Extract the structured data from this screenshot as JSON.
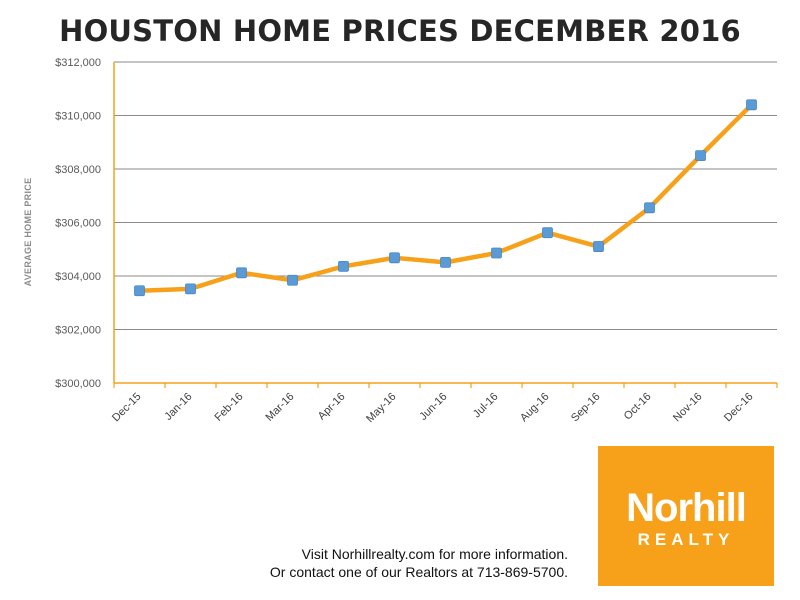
{
  "title": "HOUSTON HOME PRICES DECEMBER 2016",
  "chart_data": {
    "type": "line",
    "categories": [
      "Dec-15",
      "Jan-16",
      "Feb-16",
      "Mar-16",
      "Apr-16",
      "May-16",
      "Jun-16",
      "Jul-16",
      "Aug-16",
      "Sep-16",
      "Oct-16",
      "Nov-16",
      "Dec-16"
    ],
    "values": [
      303450,
      303520,
      304120,
      303840,
      304360,
      304680,
      304510,
      304860,
      305620,
      305100,
      306550,
      308500,
      310400
    ],
    "ylabel": "AVERAGE HOME PRICE",
    "xlabel": "",
    "ylim": [
      300000,
      312000
    ],
    "yticks": [
      300000,
      302000,
      304000,
      306000,
      308000,
      310000,
      312000
    ],
    "ytick_labels": [
      "$300,000",
      "$302,000",
      "$304,000",
      "$306,000",
      "$308,000",
      "$310,000",
      "$312,000"
    ],
    "grid": "horizontal",
    "line_color": "#f7a11a",
    "marker_color": "#5b9bd5"
  },
  "footer": {
    "line1": "Visit Norhillrealty.com for more information.",
    "line2": "Or contact one of our Realtors at 713-869-5700."
  },
  "logo": {
    "main": "Norhill",
    "sub": "REALTY",
    "background": "#f7a11a"
  }
}
